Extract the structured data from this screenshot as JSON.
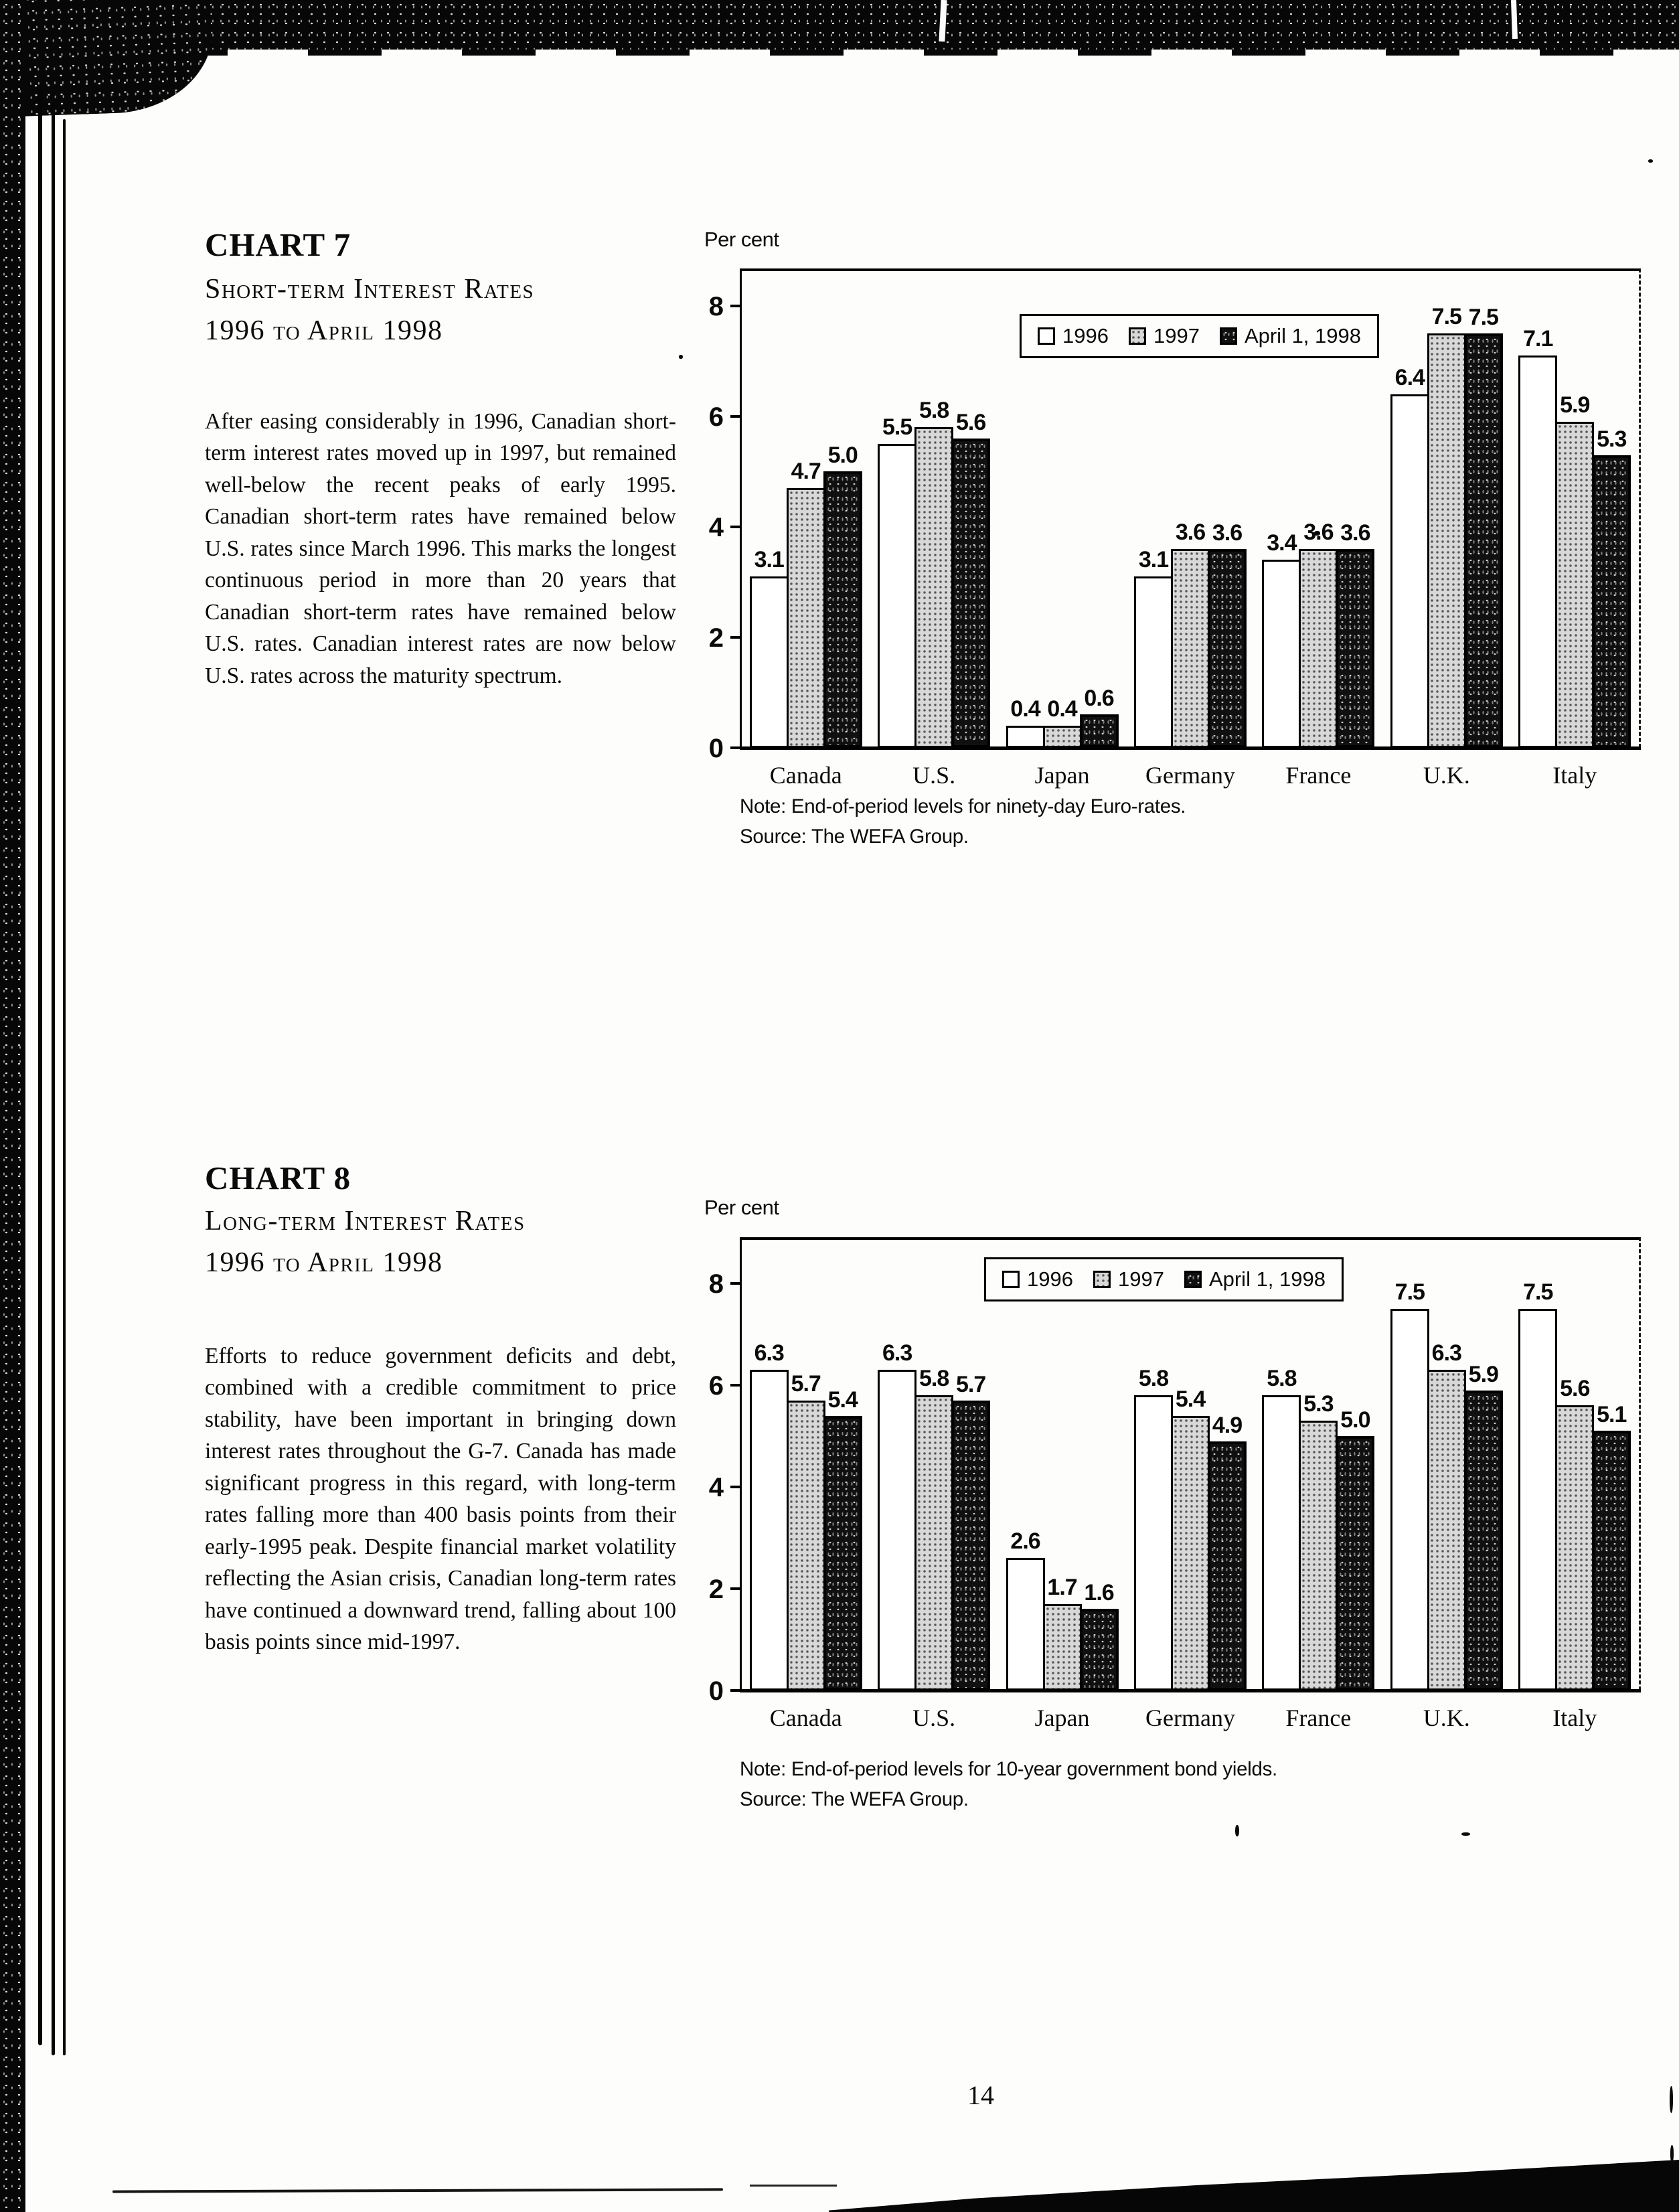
{
  "page": {
    "number": "14"
  },
  "sections": [
    {
      "kicker": "CHART 7",
      "title_line1": "Short-term Interest Rates",
      "title_line2": "1996 to April 1998",
      "body": "After easing considerably in 1996, Canadian short-term interest rates moved up in 1997, but remained well-below the recent peaks of early 1995. Canadian short-term rates have remained below U.S. rates since March 1996. This marks the longest continuous period in more than 20 years that Canadian short-term rates have remained below U.S. rates. Canadian interest rates are now below U.S. rates across the maturity spectrum.",
      "unit_label": "Per cent",
      "note": "Note:  End-of-period levels for ninety-day Euro-rates.",
      "source": "Source: The WEFA Group."
    },
    {
      "kicker": "CHART 8",
      "title_line1": "Long-term Interest Rates",
      "title_line2": "1996 to April 1998",
      "body": "Efforts to reduce government deficits and debt, combined with a credible commitment to price stability, have been important in bringing down interest rates throughout the G-7.  Canada has made significant progress in this regard, with long-term rates falling more than 400 basis points from their early-1995 peak. Despite financial market volatility reflecting the Asian crisis, Canadian long-term rates have continued a downward trend, falling about 100 basis points since mid-1997.",
      "unit_label": "Per cent",
      "note": "Note: End-of-period levels for 10-year government bond yields.",
      "source": "Source: The WEFA Group."
    }
  ],
  "chart_data": [
    {
      "type": "bar",
      "title": "Short-term Interest Rates, 1996 to April 1998",
      "ylabel": "Per cent",
      "xlabel": "",
      "categories": [
        "Canada",
        "U.S.",
        "Japan",
        "Germany",
        "France",
        "U.K.",
        "Italy"
      ],
      "series": [
        {
          "name": "1996",
          "values": [
            3.1,
            5.5,
            0.4,
            3.1,
            3.4,
            6.4,
            7.1
          ]
        },
        {
          "name": "1997",
          "values": [
            4.7,
            5.8,
            0.4,
            3.6,
            3.6,
            7.5,
            5.9
          ]
        },
        {
          "name": "April 1, 1998",
          "values": [
            5.0,
            5.6,
            0.6,
            3.6,
            3.6,
            7.5,
            5.3
          ]
        }
      ],
      "ylim": [
        0,
        8
      ],
      "yticks": [
        0,
        2,
        4,
        6,
        8
      ],
      "grid": false,
      "legend_position": "top-right",
      "note": "Note:  End-of-period levels for ninety-day Euro-rates.",
      "source": "Source: The WEFA Group."
    },
    {
      "type": "bar",
      "title": "Long-term Interest Rates, 1996 to April 1998",
      "ylabel": "Per cent",
      "xlabel": "",
      "categories": [
        "Canada",
        "U.S.",
        "Japan",
        "Germany",
        "France",
        "U.K.",
        "Italy"
      ],
      "series": [
        {
          "name": "1996",
          "values": [
            6.3,
            6.3,
            2.6,
            5.8,
            5.8,
            7.5,
            7.5
          ]
        },
        {
          "name": "1997",
          "values": [
            5.7,
            5.8,
            1.7,
            5.4,
            5.3,
            6.3,
            5.6
          ]
        },
        {
          "name": "April 1, 1998",
          "values": [
            5.4,
            5.7,
            1.6,
            4.9,
            5.0,
            5.9,
            5.1
          ]
        }
      ],
      "ylim": [
        0,
        8
      ],
      "yticks": [
        0,
        2,
        4,
        6,
        8
      ],
      "grid": false,
      "legend_position": "top-right",
      "note": "Note: End-of-period levels for 10-year government bond yields.",
      "source": "Source: The WEFA Group."
    }
  ]
}
